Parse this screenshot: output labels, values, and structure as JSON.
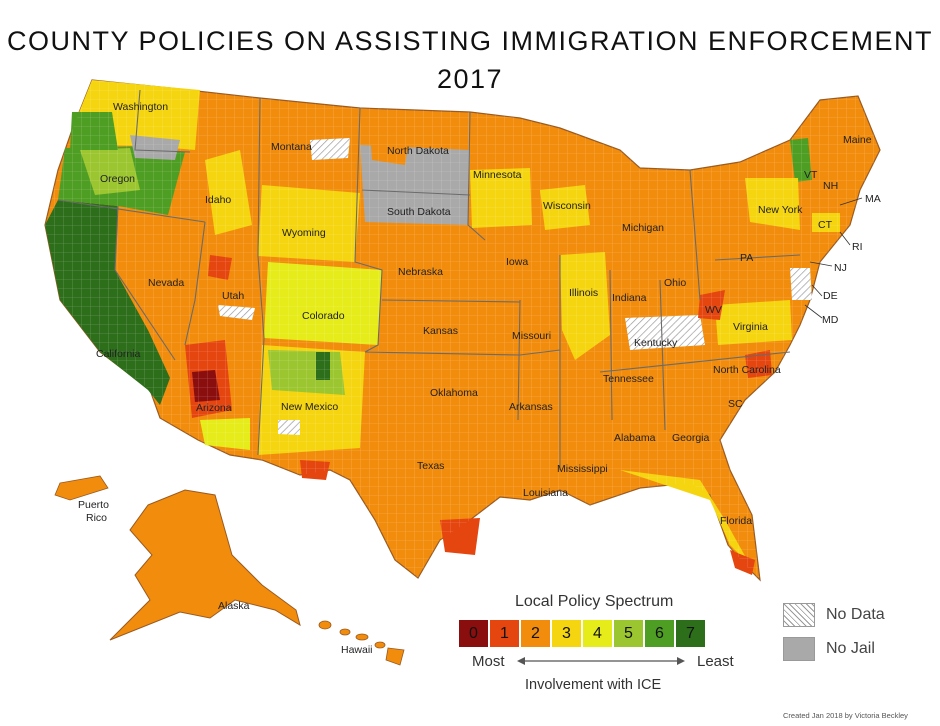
{
  "title_line1": "COUNTY POLICIES ON ASSISTING IMMIGRATION ENFORCEMENT",
  "title_line2": "2017",
  "colors": {
    "0": "#8b0e0e",
    "1": "#e5450f",
    "2": "#f28c0c",
    "3": "#f5d510",
    "4": "#e6ec1a",
    "5": "#9bc630",
    "6": "#4f9e24",
    "7": "#2d6e1b",
    "nojail": "#a9a9a9",
    "nodata": "#ffffff"
  },
  "labels": {
    "washington": "Washington",
    "oregon": "Oregon",
    "california": "California",
    "nevada": "Nevada",
    "idaho": "Idaho",
    "montana": "Montana",
    "wyoming": "Wyoming",
    "utah": "Utah",
    "colorado": "Colorado",
    "arizona": "Arizona",
    "new_mexico": "New Mexico",
    "north_dakota": "North Dakota",
    "south_dakota": "South Dakota",
    "nebraska": "Nebraska",
    "kansas": "Kansas",
    "oklahoma": "Oklahoma",
    "texas": "Texas",
    "minnesota": "Minnesota",
    "iowa": "Iowa",
    "missouri": "Missouri",
    "arkansas": "Arkansas",
    "louisiana": "Louisiana",
    "wisconsin": "Wisconsin",
    "illinois": "Illinois",
    "michigan": "Michigan",
    "indiana": "Indiana",
    "ohio": "Ohio",
    "kentucky": "Kentucky",
    "tennessee": "Tennessee",
    "mississippi": "Mississippi",
    "alabama": "Alabama",
    "georgia": "Georgia",
    "florida": "Florida",
    "sc": "SC",
    "north_carolina": "North Carolina",
    "virginia": "Virginia",
    "wv": "WV",
    "pa": "PA",
    "new_york": "New York",
    "maine": "Maine",
    "vt": "VT",
    "nh": "NH",
    "ma": "MA",
    "ct": "CT",
    "ri": "RI",
    "nj": "NJ",
    "de": "DE",
    "md": "MD",
    "alaska": "Alaska",
    "hawaii": "Hawaii",
    "puerto_rico_1": "Puerto",
    "puerto_rico_2": "Rico"
  },
  "legend": {
    "title": "Local Policy Spectrum",
    "scale": [
      "0",
      "1",
      "2",
      "3",
      "4",
      "5",
      "6",
      "7"
    ],
    "most": "Most",
    "least": "Least",
    "axis_label": "Involvement with ICE",
    "no_data": "No Data",
    "no_jail": "No Jail"
  },
  "credit": "Created Jan 2018 by Victoria Beckley"
}
